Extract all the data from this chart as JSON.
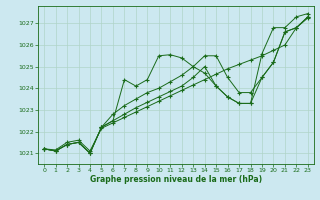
{
  "xlabel": "Graphe pression niveau de la mer (hPa)",
  "bg_color": "#cce8f0",
  "grid_color": "#b0d4c8",
  "line_color": "#1a6b1a",
  "ylim": [
    1020.5,
    1027.8
  ],
  "xlim": [
    -0.5,
    23.5
  ],
  "yticks": [
    1021,
    1022,
    1023,
    1024,
    1025,
    1026,
    1027
  ],
  "xticks": [
    0,
    1,
    2,
    3,
    4,
    5,
    6,
    7,
    8,
    9,
    10,
    11,
    12,
    13,
    14,
    15,
    16,
    17,
    18,
    19,
    20,
    21,
    22,
    23
  ],
  "line1": [
    1021.2,
    1021.1,
    1021.4,
    1021.5,
    1021.0,
    1022.2,
    1022.5,
    1024.4,
    1024.1,
    1024.4,
    1025.5,
    1025.55,
    1025.4,
    1025.0,
    1024.7,
    1024.1,
    1023.6,
    1023.3,
    1023.3,
    1025.6,
    1026.8,
    1026.8,
    1027.3,
    1027.45
  ],
  "line2": [
    1021.2,
    1021.15,
    1021.5,
    1021.6,
    1021.1,
    1022.15,
    1022.4,
    1022.65,
    1022.9,
    1023.15,
    1023.4,
    1023.65,
    1023.9,
    1024.15,
    1024.4,
    1024.65,
    1024.9,
    1025.1,
    1025.3,
    1025.5,
    1025.75,
    1026.0,
    1026.8,
    1027.25
  ],
  "line3": [
    1021.2,
    1021.1,
    1021.4,
    1021.5,
    1021.0,
    1022.2,
    1022.8,
    1023.2,
    1023.5,
    1023.8,
    1024.0,
    1024.3,
    1024.6,
    1025.0,
    1025.5,
    1025.5,
    1024.5,
    1023.8,
    1023.8,
    1024.5,
    1025.2,
    1026.6,
    1026.8,
    1027.3
  ],
  "line4": [
    1021.2,
    1021.1,
    1021.4,
    1021.5,
    1021.0,
    1022.2,
    1022.5,
    1022.8,
    1023.1,
    1023.35,
    1023.6,
    1023.85,
    1024.1,
    1024.5,
    1025.0,
    1024.1,
    1023.6,
    1023.3,
    1023.3,
    1024.5,
    1025.2,
    1026.6,
    1026.8,
    1027.3
  ]
}
